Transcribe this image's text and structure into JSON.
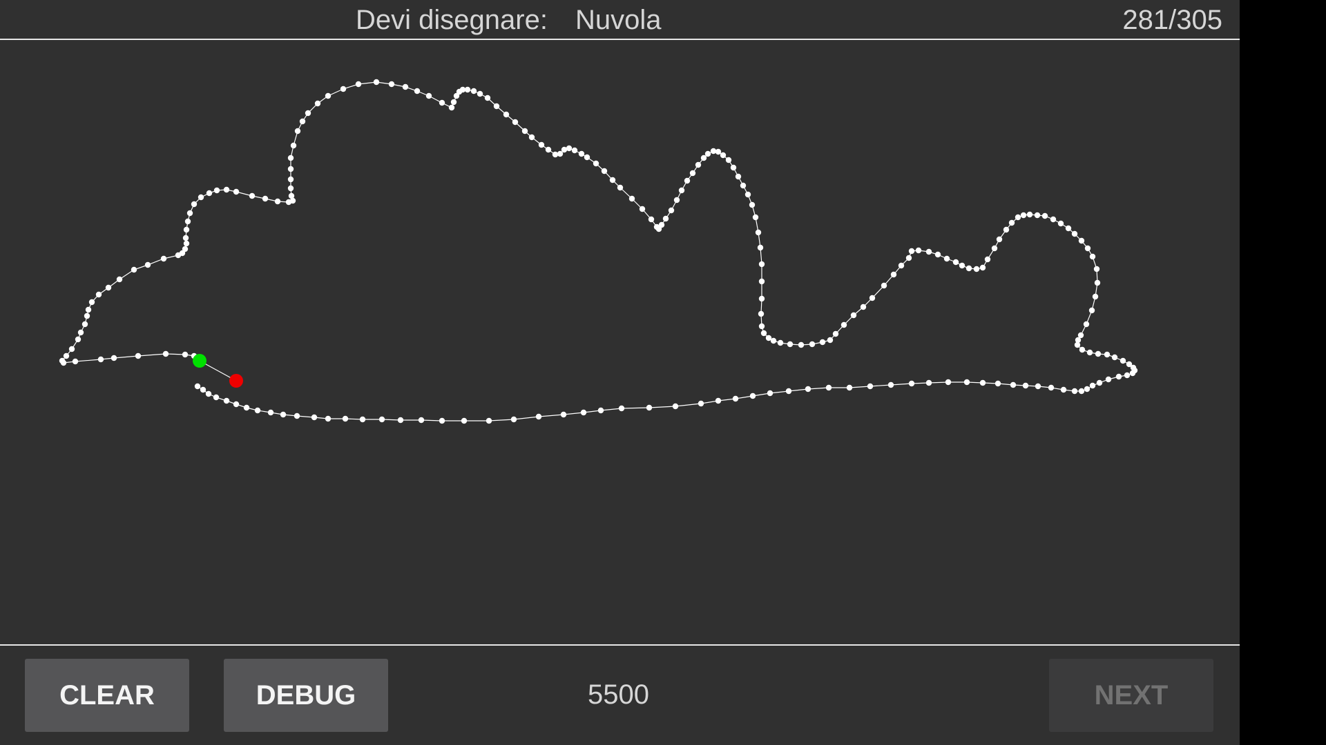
{
  "header": {
    "prompt_label": "Devi disegnare:",
    "prompt_word": "Nuvola",
    "counter": "281/305"
  },
  "toolbar": {
    "clear_label": "CLEAR",
    "debug_label": "DEBUG",
    "score": "5500",
    "next_label": "NEXT"
  },
  "colors": {
    "background": "#303030",
    "stroke": "#ffffff",
    "start_marker": "#00e000",
    "end_marker": "#ee0000",
    "button_bg": "#555557",
    "button_disabled_bg": "#3b3b3c"
  }
}
